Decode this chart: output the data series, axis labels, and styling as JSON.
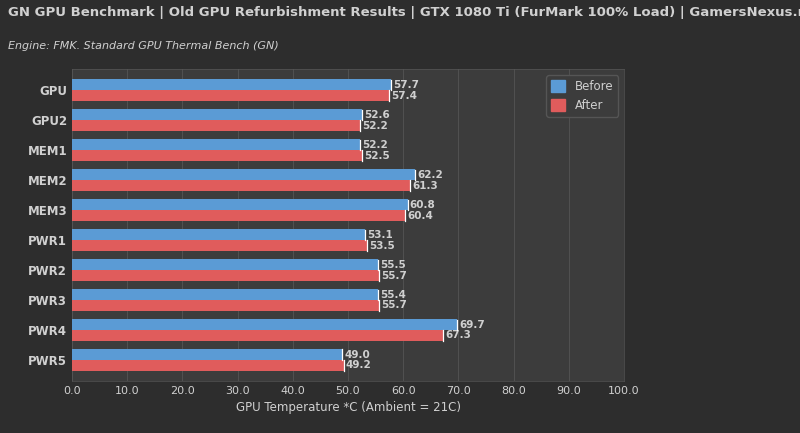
{
  "title": "GN GPU Benchmark | Old GPU Refurbishment Results | GTX 1080 Ti (FurMark 100% Load) | GamersNexus.net",
  "subtitle": "Engine: FMK. Standard GPU Thermal Bench (GN)",
  "xlabel": "GPU Temperature *C (Ambient = 21C)",
  "categories": [
    "GPU",
    "GPU2",
    "MEM1",
    "MEM2",
    "MEM3",
    "PWR1",
    "PWR2",
    "PWR3",
    "PWR4",
    "PWR5"
  ],
  "before": [
    57.7,
    52.6,
    52.2,
    62.2,
    60.8,
    53.1,
    55.5,
    55.4,
    69.7,
    49.0
  ],
  "after": [
    57.4,
    52.2,
    52.5,
    61.3,
    60.4,
    53.5,
    55.7,
    55.7,
    67.3,
    49.2
  ],
  "before_color": "#5b9bd5",
  "after_color": "#e05c5c",
  "background_color": "#2d2d2d",
  "axes_color": "#3c3c3c",
  "text_color": "#d0d0d0",
  "grid_color": "#555555",
  "xlim": [
    0,
    100
  ],
  "xticks": [
    0.0,
    10.0,
    20.0,
    30.0,
    40.0,
    50.0,
    60.0,
    70.0,
    80.0,
    90.0,
    100.0
  ],
  "bar_height": 0.36,
  "title_fontsize": 9.5,
  "subtitle_fontsize": 8.0,
  "label_fontsize": 8.5,
  "tick_fontsize": 8.0,
  "value_fontsize": 7.5
}
